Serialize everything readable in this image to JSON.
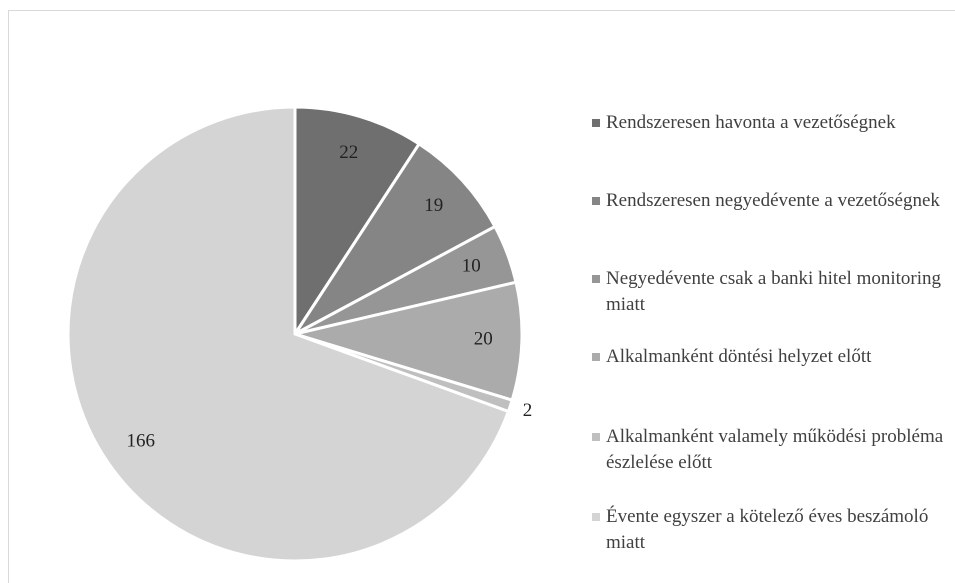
{
  "chart_data": {
    "type": "pie",
    "categories": [
      "Rendszeresen havonta a vezetőségnek",
      "Rendszeresen negyedévente a vezetőségnek",
      "Negyedévente csak a banki hitel monitoring miatt",
      "Alkalmanként döntési helyzet előtt",
      "Alkalmanként valamely működési probléma észlelése előtt",
      "Évente egyszer a kötelező éves beszámoló miatt"
    ],
    "values": [
      22,
      19,
      10,
      20,
      2,
      166
    ],
    "colors": [
      "#6f6f6f",
      "#858585",
      "#969696",
      "#ababab",
      "#bfbfbf",
      "#d4d4d4"
    ],
    "legend": "right"
  }
}
